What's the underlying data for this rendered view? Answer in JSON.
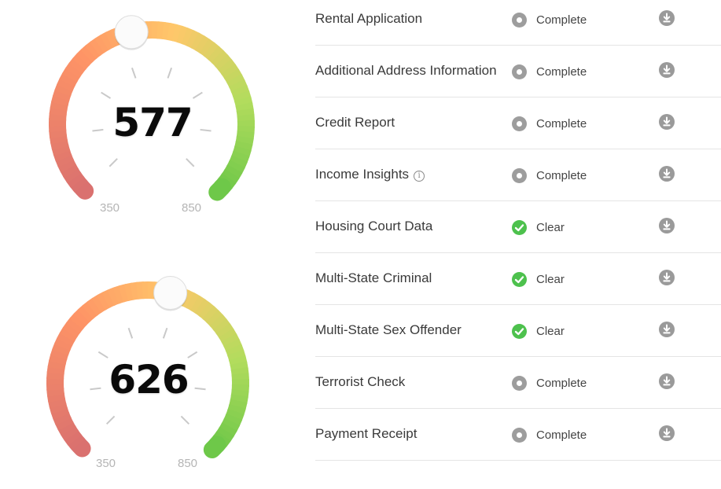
{
  "gauges": [
    {
      "score": "577",
      "min_label": "350",
      "max_label": "850",
      "value": 577,
      "min": 350,
      "max": 850
    },
    {
      "score": "626",
      "min_label": "350",
      "max_label": "850",
      "value": 626,
      "min": 350,
      "max": 850
    }
  ],
  "reports": [
    {
      "name": "Rental Application",
      "status": "Complete",
      "status_type": "pending",
      "has_info": false
    },
    {
      "name": "Additional Address Information",
      "status": "Complete",
      "status_type": "pending",
      "has_info": false
    },
    {
      "name": "Credit Report",
      "status": "Complete",
      "status_type": "pending",
      "has_info": false
    },
    {
      "name": "Income Insights",
      "status": "Complete",
      "status_type": "pending",
      "has_info": true,
      "info_glyph": "i"
    },
    {
      "name": "Housing Court Data",
      "status": "Clear",
      "status_type": "clear",
      "has_info": false
    },
    {
      "name": "Multi-State Criminal",
      "status": "Clear",
      "status_type": "clear",
      "has_info": false
    },
    {
      "name": "Multi-State Sex Offender",
      "status": "Clear",
      "status_type": "clear",
      "has_info": false
    },
    {
      "name": "Terrorist Check",
      "status": "Complete",
      "status_type": "pending",
      "has_info": false
    },
    {
      "name": "Payment Receipt",
      "status": "Complete",
      "status_type": "pending",
      "has_info": false
    }
  ],
  "colors": {
    "gauge_low": "#d9706f",
    "gauge_orange": "#fe9466",
    "gauge_yellow": "#ffc76a",
    "gauge_high": "#6cc748",
    "clear": "#4dc14d",
    "pending": "#9d9d9d",
    "download": "#9a9a9a"
  },
  "icons": {
    "pending": "radio-dot-icon",
    "clear": "check-circle-icon",
    "download": "download-icon",
    "info": "info-icon"
  }
}
